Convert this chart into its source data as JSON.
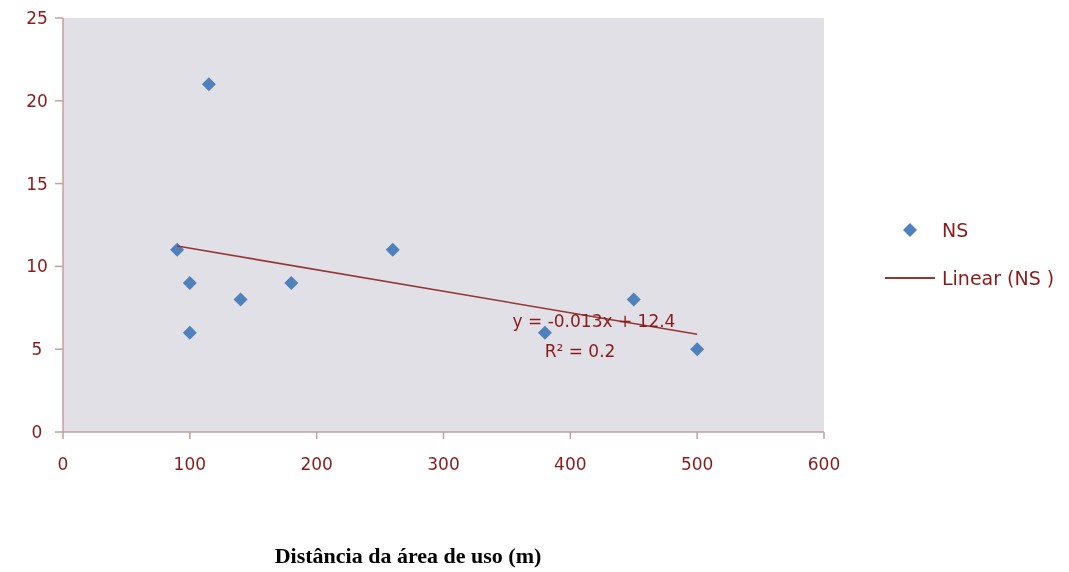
{
  "chart_data": {
    "type": "scatter",
    "xlabel": "Distância da área de uso (m)",
    "xlim": [
      0,
      600
    ],
    "xticks": [
      0,
      100,
      200,
      300,
      400,
      500,
      600
    ],
    "ylim": [
      0,
      25
    ],
    "yticks": [
      0,
      5,
      10,
      15,
      20,
      25
    ],
    "grid": false,
    "legend": "right",
    "series": [
      {
        "name": "NS",
        "marker": "diamond",
        "color": "#4f81bd",
        "x": [
          90,
          100,
          100,
          115,
          140,
          180,
          260,
          380,
          450,
          500
        ],
        "values": [
          11,
          9,
          6,
          21,
          8,
          9,
          11,
          6,
          8,
          5
        ]
      },
      {
        "name": "Linear (NS )",
        "type": "line",
        "color": "#943634",
        "line_style": "solid",
        "x": [
          90,
          500
        ],
        "values": [
          11.23,
          5.9
        ]
      }
    ],
    "annotations": [
      "y = -0.013x + 12.4",
      "R² = 0.2"
    ]
  }
}
